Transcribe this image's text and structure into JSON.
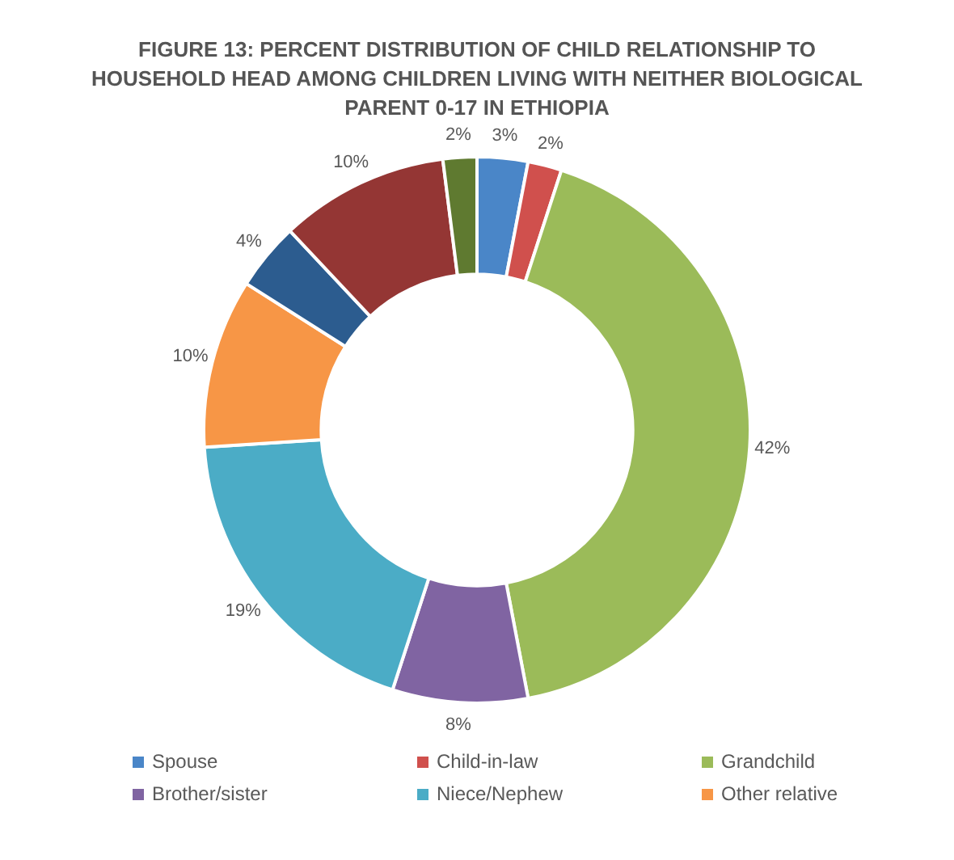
{
  "chart_data": {
    "type": "donut",
    "title": "FIGURE 13: PERCENT DISTRIBUTION OF CHILD RELATIONSHIP TO HOUSEHOLD  HEAD AMONG CHILDREN LIVING WITH NEITHER BIOLOGICAL PARENT 0-17 IN ETHIOPIA",
    "categories": [
      "Spouse",
      "Child-in-law",
      "Grandchild",
      "Brother/sister",
      "Niece/Nephew",
      "Other relative",
      null,
      null,
      null
    ],
    "values": [
      3,
      2,
      42,
      8,
      19,
      10,
      4,
      10,
      2
    ],
    "colors": [
      "#4a86c8",
      "#d0504d",
      "#9bbb59",
      "#8064a2",
      "#4bacc6",
      "#f79646",
      "#2c5c8f",
      "#943634",
      "#5f7a30"
    ],
    "value_labels": [
      "3%",
      "2%",
      "42%",
      "8%",
      "19%",
      "10%",
      "4%",
      "10%",
      "2%"
    ],
    "legend": "bottom"
  }
}
